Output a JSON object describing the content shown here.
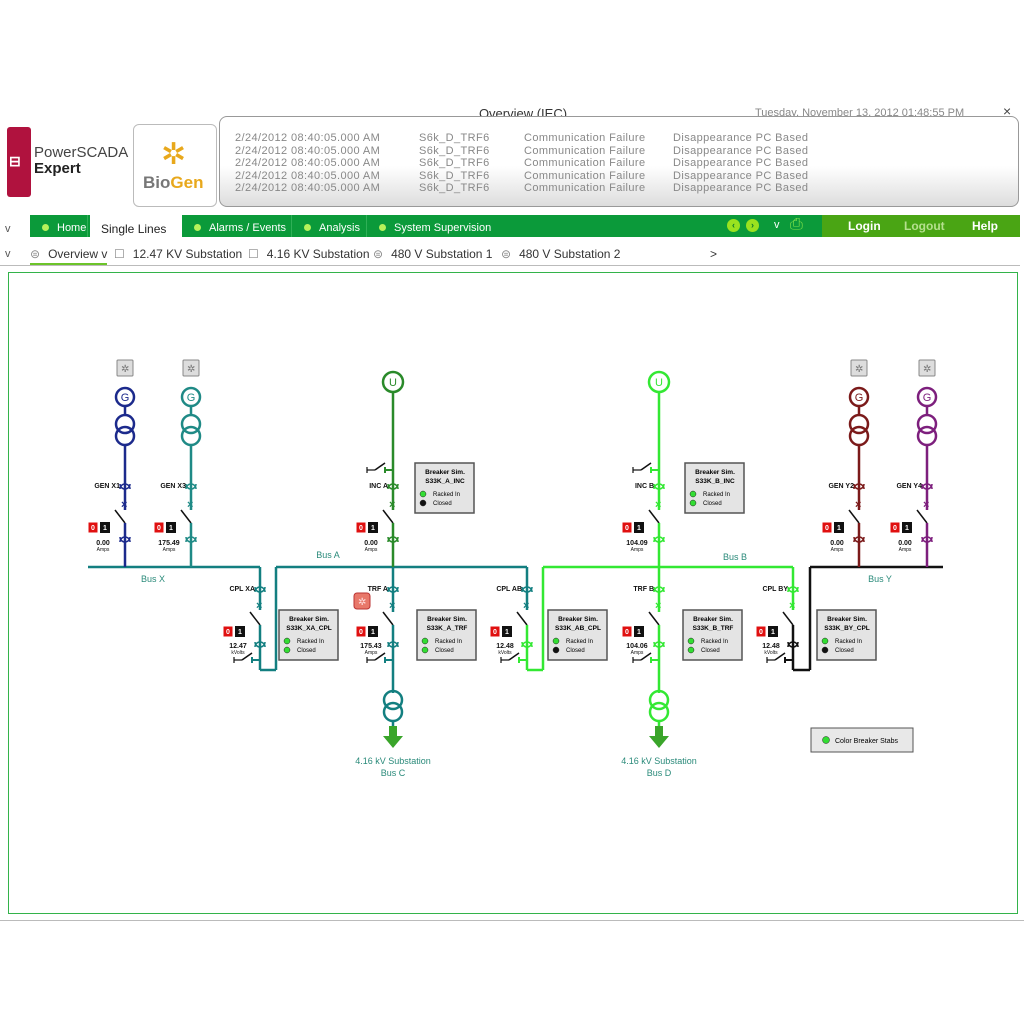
{
  "header": {
    "title": "Overview (IEC)",
    "datetime": "Tuesday, November 13, 2012 01:48:55 PM",
    "close": "×"
  },
  "logos": {
    "powerscada": [
      "PowerSCADA",
      "Expert"
    ],
    "biogen": [
      "Bio",
      "Gen"
    ]
  },
  "alarms": [
    {
      "time": "2/24/2012 08:40:05.000 AM",
      "device": "S6k_D_TRF6",
      "type": "Communication Failure",
      "desc": "Disappearance PC Based"
    },
    {
      "time": "2/24/2012 08:40:05.000 AM",
      "device": "S6k_D_TRF6",
      "type": "Communication Failure",
      "desc": "Disappearance PC Based"
    },
    {
      "time": "2/24/2012 08:40:05.000 AM",
      "device": "S6k_D_TRF6",
      "type": "Communication Failure",
      "desc": "Disappearance PC Based"
    },
    {
      "time": "2/24/2012 08:40:05.000 AM",
      "device": "S6k_D_TRF6",
      "type": "Communication Failure",
      "desc": "Disappearance PC Based"
    },
    {
      "time": "2/24/2012 08:40:05.000 AM",
      "device": "S6k_D_TRF6",
      "type": "Communication Failure",
      "desc": "Disappearance PC Based"
    }
  ],
  "nav": {
    "tabs": [
      "Home",
      "Single Lines",
      "Alarms / Events",
      "Analysis",
      "System Supervision"
    ],
    "active": "Single Lines",
    "login": "Login",
    "logout": "Logout",
    "help": "Help",
    "chevron": "v"
  },
  "subnav": {
    "items": [
      "Overview",
      "12.47 KV Substation",
      "4.16 KV Substation",
      "480 V Substation 1",
      "480 V Substation 2"
    ],
    "active": "Overview",
    "more": ">"
  },
  "diagram": {
    "counter": [
      "0",
      "1"
    ],
    "sources": [
      {
        "symbol": "G",
        "breaker": "GEN X1",
        "value": "0.00",
        "unit": "Amps",
        "color": "#1c2a8c"
      },
      {
        "symbol": "G",
        "breaker": "GEN X3",
        "value": "175.49",
        "unit": "Amps",
        "color": "#1f8a86"
      },
      {
        "symbol": "U",
        "breaker": "INC A",
        "value": "0.00",
        "unit": "Amps",
        "color": "#2a8a2a"
      },
      {
        "symbol": "U",
        "breaker": "INC B",
        "value": "104.09",
        "unit": "Amps",
        "color": "#33e833"
      },
      {
        "symbol": "G",
        "breaker": "GEN Y2",
        "value": "0.00",
        "unit": "Amps",
        "color": "#7b1a1a"
      },
      {
        "symbol": "G",
        "breaker": "GEN Y4",
        "value": "0.00",
        "unit": "Amps",
        "color": "#7d1f7d"
      }
    ],
    "buses": [
      {
        "name": "Bus X",
        "color": "#137f80"
      },
      {
        "name": "Bus A",
        "color": "#137f80"
      },
      {
        "name": "Bus B",
        "color": "#33e833"
      },
      {
        "name": "Bus Y",
        "color": "#111111"
      }
    ],
    "couplers": [
      {
        "breaker": "CPL XA",
        "value": "12.47",
        "unit": "kVolts",
        "color_top": "#137f80",
        "color_bottom": "#137f80"
      },
      {
        "breaker": "CPL AB",
        "value": "12.48",
        "unit": "kVolts",
        "color_top": "#137f80",
        "color_bottom": "#33e833"
      },
      {
        "breaker": "CPL BY",
        "value": "12.48",
        "unit": "kVolts",
        "color_top": "#33e833",
        "color_bottom": "#111111"
      }
    ],
    "feeders": [
      {
        "breaker": "TRF A",
        "value": "175.43",
        "unit": "Amps",
        "color": "#137f80",
        "destination": "4.16 kV Substation",
        "dest_bus": "Bus C"
      },
      {
        "breaker": "TRF B",
        "value": "104.06",
        "unit": "Amps",
        "color": "#33e833",
        "destination": "4.16 kV Substation",
        "dest_bus": "Bus D"
      }
    ],
    "breaker_sims": [
      {
        "title": "Breaker Sim.",
        "id": "S33K_A_INC",
        "status": [
          {
            "label": "Racked In",
            "state": "on"
          },
          {
            "label": "Closed",
            "state": "off"
          }
        ]
      },
      {
        "title": "Breaker Sim.",
        "id": "S33K_B_INC",
        "status": [
          {
            "label": "Racked In",
            "state": "on"
          },
          {
            "label": "Closed",
            "state": "on"
          }
        ]
      },
      {
        "title": "Breaker Sim.",
        "id": "S33K_XA_CPL",
        "status": [
          {
            "label": "Racked In",
            "state": "on"
          },
          {
            "label": "Closed",
            "state": "on"
          }
        ]
      },
      {
        "title": "Breaker Sim.",
        "id": "S33K_A_TRF",
        "status": [
          {
            "label": "Racked In",
            "state": "on"
          },
          {
            "label": "Closed",
            "state": "on"
          }
        ]
      },
      {
        "title": "Breaker Sim.",
        "id": "S33K_AB_CPL",
        "status": [
          {
            "label": "Racked In",
            "state": "on"
          },
          {
            "label": "Closed",
            "state": "off"
          }
        ]
      },
      {
        "title": "Breaker Sim.",
        "id": "S33K_B_TRF",
        "status": [
          {
            "label": "Racked In",
            "state": "on"
          },
          {
            "label": "Closed",
            "state": "on"
          }
        ]
      },
      {
        "title": "Breaker Sim.",
        "id": "S33K_BY_CPL",
        "status": [
          {
            "label": "Racked In",
            "state": "on"
          },
          {
            "label": "Closed",
            "state": "off"
          }
        ]
      }
    ],
    "legend": {
      "label": "Color Breaker Stabs",
      "color": "#33dd33"
    },
    "status_colors": {
      "on": "#33dd33",
      "off": "#111111",
      "alarm": "#e8786a"
    }
  }
}
